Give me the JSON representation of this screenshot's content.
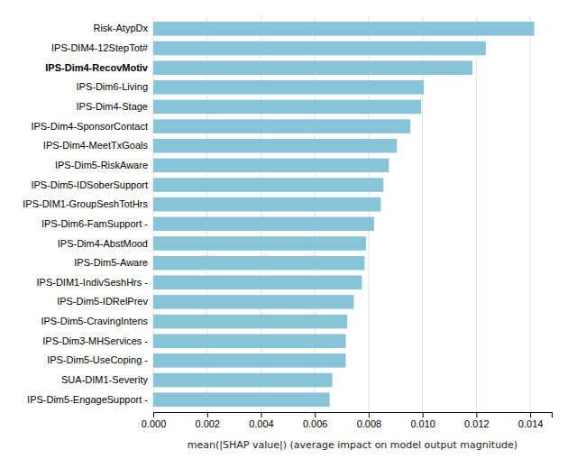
{
  "chart_data": {
    "type": "bar",
    "orientation": "horizontal",
    "categories": [
      "Risk-AtypDx",
      "IPS-DIM4-12StepTot#",
      "IPS-Dim4-RecovMotiv",
      "IPS-Dim6-Living",
      "IPS-Dim4-Stage",
      "IPS-Dim4-SponsorContact",
      "IPS-Dim4-MeetTxGoals",
      "IPS-Dim5-RiskAware",
      "IPS-Dim5-IDSoberSupport",
      "IPS-DIM1-GroupSeshTotHrs",
      "IPS-Dim6-FamSupport -",
      "IPS-Dim4-AbstMood",
      "IPS-Dim5-Aware",
      "IPS-DIM1-IndivSeshHrs -",
      "IPS-Dim5-IDRelPrev",
      "IPS-Dim5-CravingIntens",
      "IPS-Dim3-MHServices -",
      "IPS-Dim5-UseCoping -",
      "SUA-DIM1-Severity",
      "IPS-Dim5-EngageSupport -"
    ],
    "values": [
      0.01415,
      0.01235,
      0.01185,
      0.01005,
      0.00995,
      0.00955,
      0.00905,
      0.00875,
      0.00855,
      0.00845,
      0.0082,
      0.0079,
      0.00785,
      0.00775,
      0.00745,
      0.0072,
      0.00715,
      0.00715,
      0.00665,
      0.00655
    ],
    "color": "#88C4D8",
    "x_label": "mean(|SHAP value|) (average impact on model output magnitude)",
    "xlim": [
      0,
      0.0148
    ],
    "xticks": [
      {
        "value": 0.0,
        "label": "0.000"
      },
      {
        "value": 0.002,
        "label": "0.002"
      },
      {
        "value": 0.004,
        "label": "0.004"
      },
      {
        "value": 0.006,
        "label": "0.006"
      },
      {
        "value": 0.008,
        "label": "0.008"
      },
      {
        "value": 0.01,
        "label": "0.010"
      },
      {
        "value": 0.012,
        "label": "0.012"
      },
      {
        "value": 0.014,
        "label": "0.014"
      }
    ],
    "grid": true
  }
}
